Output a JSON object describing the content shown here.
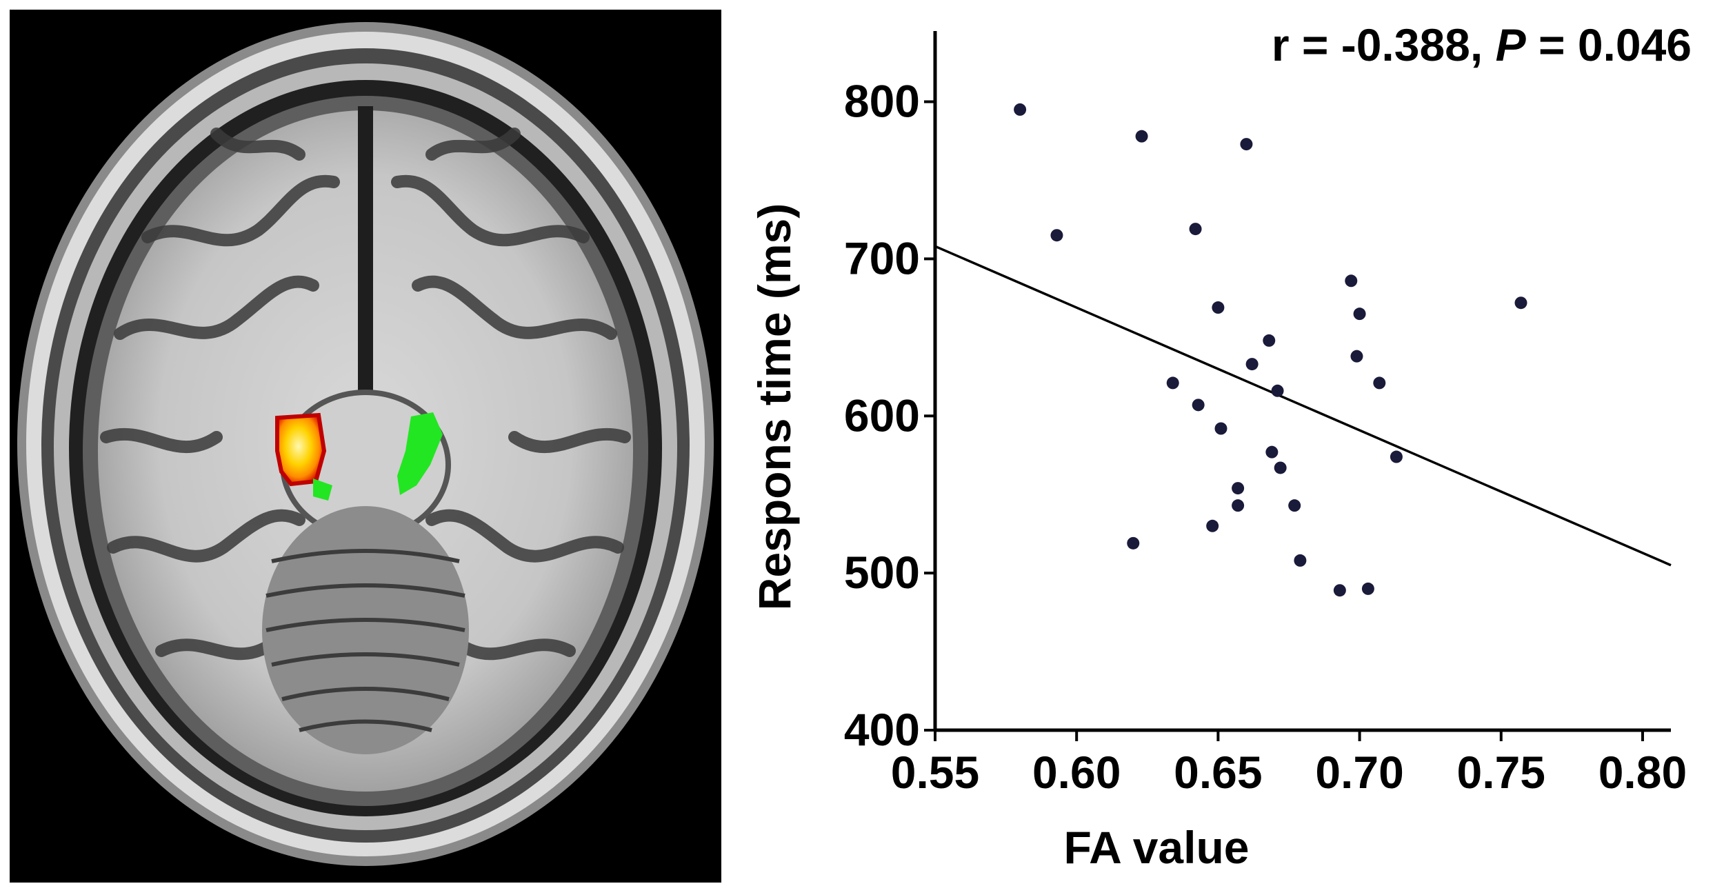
{
  "figure": {
    "brain_image": {
      "overlay_colors": {
        "hot_cluster": "#ff8c00",
        "hot_core": "#fff5a0",
        "hot_edge": "#d40000",
        "tract": "#22e622"
      }
    }
  },
  "chart_data": {
    "type": "scatter",
    "title": "",
    "annotation": {
      "r_text": "r = -0.388,",
      "p_label": "P",
      "p_value_text": " = 0.046"
    },
    "xlabel": "FA value",
    "ylabel": "Respons time (ms)",
    "xlim": [
      0.55,
      0.81
    ],
    "ylim": [
      400,
      845
    ],
    "xticks": [
      0.55,
      0.6,
      0.65,
      0.7,
      0.75,
      0.8
    ],
    "xtick_labels": [
      "0.55",
      "0.60",
      "0.65",
      "0.70",
      "0.75",
      "0.80"
    ],
    "yticks": [
      400,
      500,
      600,
      700,
      800
    ],
    "ytick_labels": [
      "400",
      "500",
      "600",
      "700",
      "800"
    ],
    "grid": false,
    "marker_color": "#1a1a3a",
    "line_color": "#000000",
    "points": [
      {
        "x": 0.58,
        "y": 795
      },
      {
        "x": 0.593,
        "y": 715
      },
      {
        "x": 0.62,
        "y": 519
      },
      {
        "x": 0.623,
        "y": 778
      },
      {
        "x": 0.634,
        "y": 621
      },
      {
        "x": 0.642,
        "y": 719
      },
      {
        "x": 0.643,
        "y": 607
      },
      {
        "x": 0.648,
        "y": 530
      },
      {
        "x": 0.65,
        "y": 669
      },
      {
        "x": 0.651,
        "y": 592
      },
      {
        "x": 0.657,
        "y": 554
      },
      {
        "x": 0.657,
        "y": 543
      },
      {
        "x": 0.66,
        "y": 773
      },
      {
        "x": 0.662,
        "y": 633
      },
      {
        "x": 0.668,
        "y": 648
      },
      {
        "x": 0.669,
        "y": 577
      },
      {
        "x": 0.671,
        "y": 616
      },
      {
        "x": 0.672,
        "y": 567
      },
      {
        "x": 0.677,
        "y": 543
      },
      {
        "x": 0.679,
        "y": 508
      },
      {
        "x": 0.693,
        "y": 489
      },
      {
        "x": 0.697,
        "y": 686
      },
      {
        "x": 0.699,
        "y": 638
      },
      {
        "x": 0.7,
        "y": 665
      },
      {
        "x": 0.703,
        "y": 490
      },
      {
        "x": 0.707,
        "y": 621
      },
      {
        "x": 0.713,
        "y": 574
      },
      {
        "x": 0.757,
        "y": 672
      }
    ],
    "fit_line": {
      "x": [
        0.55,
        0.81
      ],
      "y": [
        708,
        505
      ]
    }
  }
}
